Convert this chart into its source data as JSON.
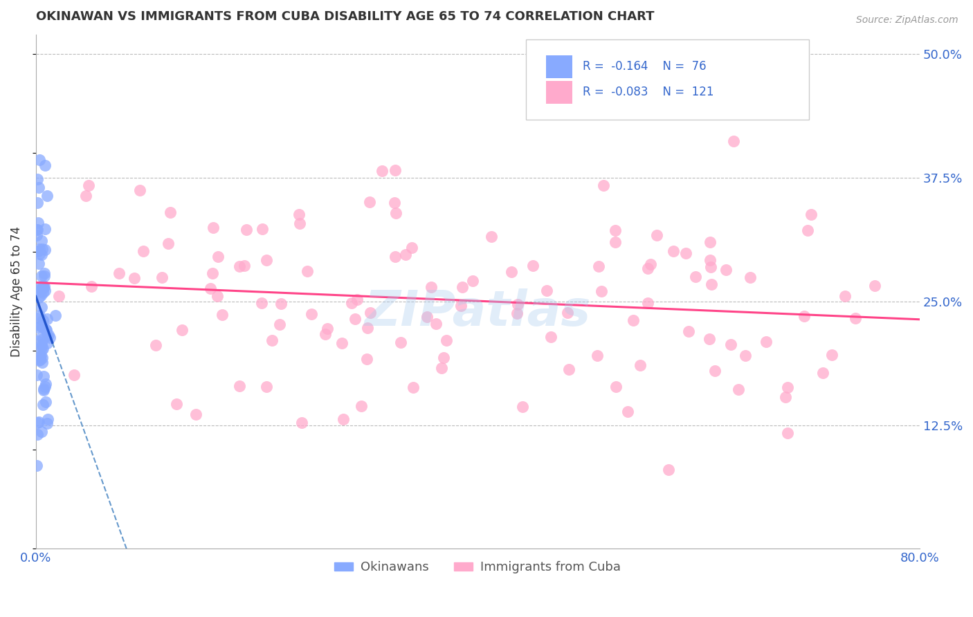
{
  "title": "OKINAWAN VS IMMIGRANTS FROM CUBA DISABILITY AGE 65 TO 74 CORRELATION CHART",
  "source_text": "Source: ZipAtlas.com",
  "ylabel": "Disability Age 65 to 74",
  "xlim": [
    0.0,
    0.8
  ],
  "ylim": [
    0.0,
    0.52
  ],
  "ytick_right_vals": [
    0.125,
    0.25,
    0.375,
    0.5
  ],
  "ytick_right_labels": [
    "12.5%",
    "25.0%",
    "37.5%",
    "50.0%"
  ],
  "color_okinawan": "#88aaff",
  "color_cuba": "#ffaacc",
  "trend_color_okinawan": "#2255cc",
  "trend_color_cuba": "#ff4488",
  "watermark_text": "ZIPatlas",
  "background_color": "#ffffff",
  "grid_color": "#bbbbbb",
  "title_color": "#333333",
  "axis_color": "#3366cc"
}
